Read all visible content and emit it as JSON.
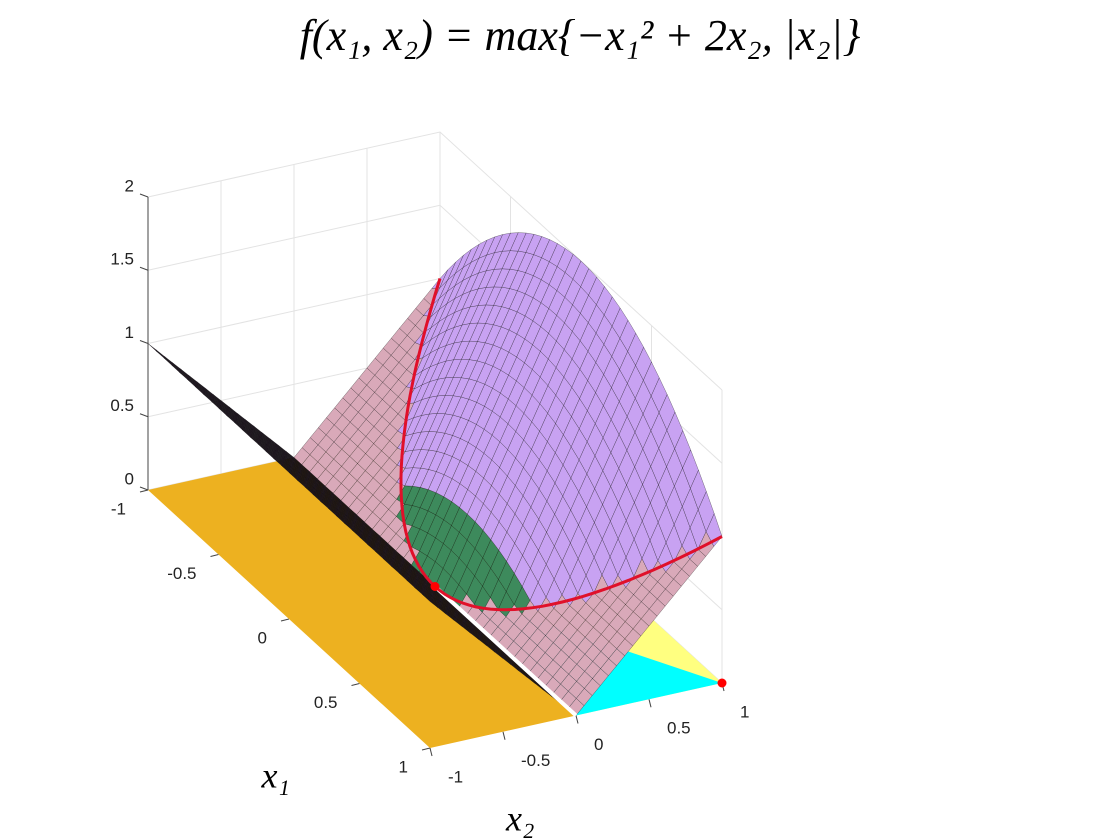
{
  "chart_data": {
    "type": "surface3d",
    "title": "f(x₁, x₂) = max{−x₁² + 2x₂, |x₂|}",
    "xlabel": "x₁",
    "ylabel": "x₂",
    "xlim": [
      -1,
      1
    ],
    "ylim": [
      -1,
      1
    ],
    "zlim": [
      0,
      2
    ],
    "xticks": [
      -1,
      -0.5,
      0,
      0.5,
      1
    ],
    "yticks": [
      -1,
      -0.5,
      0,
      0.5,
      1
    ],
    "zticks": [
      0,
      0.5,
      1,
      1.5,
      2
    ],
    "grid": true
  }
}
